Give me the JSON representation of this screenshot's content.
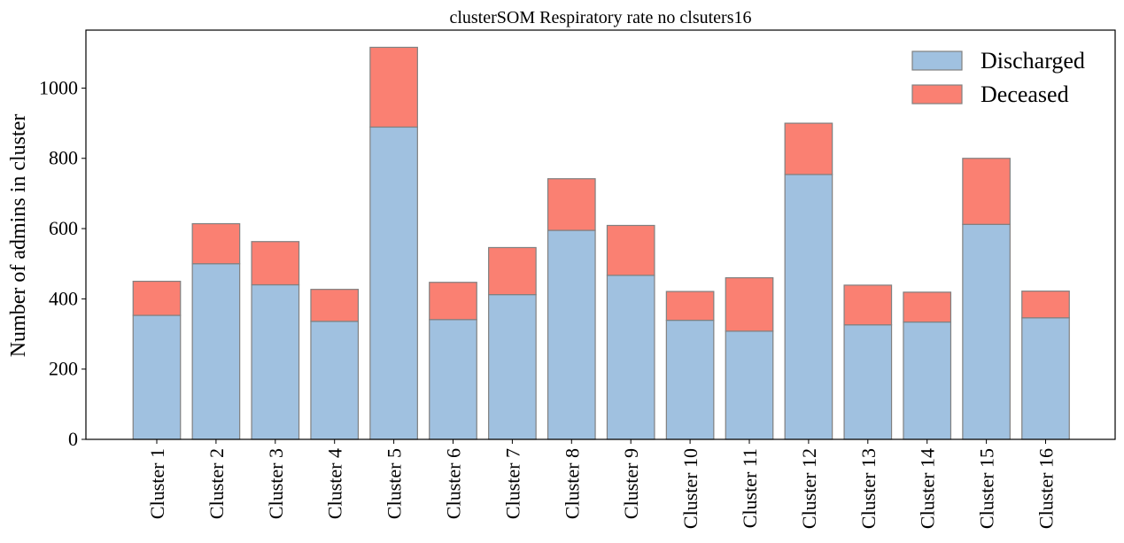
{
  "chart_data": {
    "type": "bar",
    "stacked": true,
    "title": "clusterSOM Respiratory rate no clsuters16",
    "xlabel": "",
    "ylabel": "Number of admins in cluster",
    "ylim": [
      0,
      1165
    ],
    "yticks": [
      0,
      200,
      400,
      600,
      800,
      1000
    ],
    "grid": false,
    "legend_position": "top-right",
    "categories": [
      "Cluster 1",
      "Cluster 2",
      "Cluster 3",
      "Cluster 4",
      "Cluster 5",
      "Cluster 6",
      "Cluster 7",
      "Cluster 8",
      "Cluster 9",
      "Cluster 10",
      "Cluster 11",
      "Cluster 12",
      "Cluster 13",
      "Cluster 14",
      "Cluster 15",
      "Cluster 16"
    ],
    "series": [
      {
        "name": "Discharged",
        "color": "#a0c1e0",
        "values": [
          353,
          500,
          440,
          336,
          889,
          341,
          412,
          595,
          467,
          339,
          308,
          754,
          326,
          334,
          612,
          346
        ]
      },
      {
        "name": "Deceased",
        "color": "#fa8072",
        "values": [
          97,
          114,
          123,
          91,
          227,
          106,
          134,
          147,
          142,
          82,
          152,
          146,
          113,
          85,
          188,
          76
        ]
      }
    ]
  }
}
